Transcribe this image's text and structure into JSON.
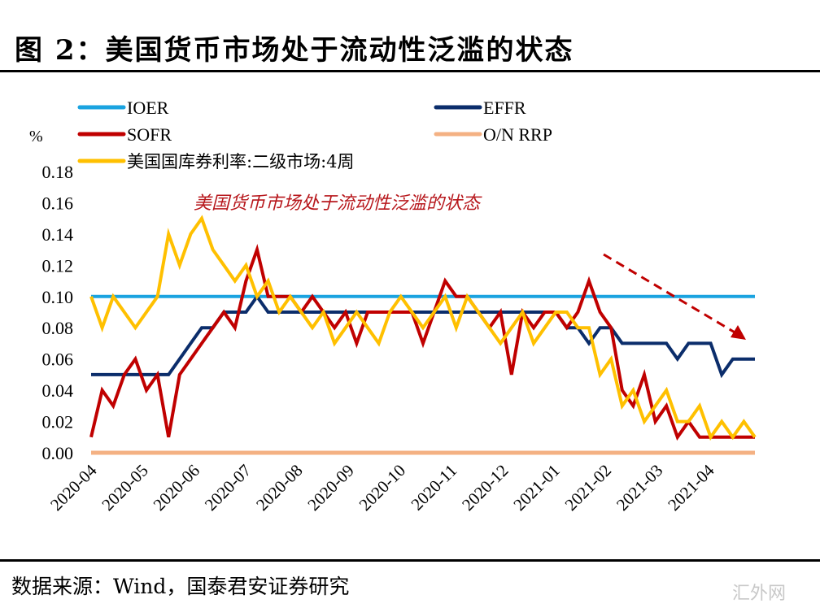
{
  "title": "图 2：美国货币市场处于流动性泛滥的状态",
  "source": "数据来源：Wind，国泰君安证券研究",
  "watermark": "汇外网",
  "chart_data": {
    "type": "line",
    "title": "图 2：美国货币市场处于流动性泛滥的状态",
    "annotation": "美国货币市场处于流动性泛滥的状态",
    "annotation_arrow": "downward-trend",
    "ylabel": "%",
    "xlabel": "",
    "ylim": [
      0.0,
      0.18
    ],
    "yticks": [
      "0.00",
      "0.02",
      "0.04",
      "0.06",
      "0.08",
      "0.10",
      "0.12",
      "0.14",
      "0.16",
      "0.18"
    ],
    "xticks": [
      "2020-04",
      "2020-05",
      "2020-06",
      "2020-07",
      "2020-08",
      "2020-09",
      "2020-10",
      "2020-11",
      "2020-12",
      "2021-01",
      "2021-02",
      "2021-03",
      "2021-04"
    ],
    "x_range": [
      "2020-04-01",
      "2021-04-30"
    ],
    "grid": false,
    "legend_position": "top",
    "series": [
      {
        "name": "IOER",
        "color": "#1aa3e0",
        "values": [
          0.1,
          0.1,
          0.1,
          0.1,
          0.1,
          0.1,
          0.1,
          0.1,
          0.1,
          0.1,
          0.1,
          0.1,
          0.1,
          0.1,
          0.1,
          0.1,
          0.1,
          0.1,
          0.1,
          0.1,
          0.1,
          0.1,
          0.1,
          0.1,
          0.1,
          0.1,
          0.1,
          0.1,
          0.1,
          0.1,
          0.1,
          0.1,
          0.1,
          0.1,
          0.1,
          0.1,
          0.1,
          0.1,
          0.1,
          0.1,
          0.1,
          0.1,
          0.1,
          0.1,
          0.1,
          0.1,
          0.1,
          0.1,
          0.1,
          0.1,
          0.1,
          0.1,
          0.1,
          0.1,
          0.1,
          0.1,
          0.1,
          0.1,
          0.1,
          0.1,
          0.1
        ]
      },
      {
        "name": "EFFR",
        "color": "#0b2d6b",
        "values": [
          0.05,
          0.05,
          0.05,
          0.05,
          0.05,
          0.05,
          0.05,
          0.05,
          0.06,
          0.07,
          0.08,
          0.08,
          0.09,
          0.09,
          0.09,
          0.1,
          0.09,
          0.09,
          0.09,
          0.09,
          0.09,
          0.09,
          0.09,
          0.09,
          0.09,
          0.09,
          0.09,
          0.09,
          0.09,
          0.09,
          0.09,
          0.09,
          0.09,
          0.09,
          0.09,
          0.09,
          0.09,
          0.09,
          0.09,
          0.09,
          0.09,
          0.09,
          0.09,
          0.08,
          0.08,
          0.07,
          0.08,
          0.08,
          0.07,
          0.07,
          0.07,
          0.07,
          0.07,
          0.06,
          0.07,
          0.07,
          0.07,
          0.05,
          0.06,
          0.06,
          0.06
        ]
      },
      {
        "name": "SOFR",
        "color": "#c00000",
        "values": [
          0.01,
          0.04,
          0.03,
          0.05,
          0.06,
          0.04,
          0.05,
          0.01,
          0.05,
          0.06,
          0.07,
          0.08,
          0.09,
          0.08,
          0.11,
          0.13,
          0.1,
          0.1,
          0.1,
          0.09,
          0.1,
          0.09,
          0.08,
          0.09,
          0.07,
          0.09,
          0.09,
          0.09,
          0.09,
          0.09,
          0.07,
          0.09,
          0.11,
          0.1,
          0.1,
          0.09,
          0.08,
          0.09,
          0.05,
          0.09,
          0.08,
          0.09,
          0.09,
          0.08,
          0.09,
          0.11,
          0.09,
          0.08,
          0.04,
          0.03,
          0.05,
          0.02,
          0.03,
          0.01,
          0.02,
          0.01,
          0.01,
          0.01,
          0.01,
          0.01,
          0.01
        ]
      },
      {
        "name": "O/N RRP",
        "color": "#f4b183",
        "values": [
          0.0,
          0.0,
          0.0,
          0.0,
          0.0,
          0.0,
          0.0,
          0.0,
          0.0,
          0.0,
          0.0,
          0.0,
          0.0,
          0.0,
          0.0,
          0.0,
          0.0,
          0.0,
          0.0,
          0.0,
          0.0,
          0.0,
          0.0,
          0.0,
          0.0,
          0.0,
          0.0,
          0.0,
          0.0,
          0.0,
          0.0,
          0.0,
          0.0,
          0.0,
          0.0,
          0.0,
          0.0,
          0.0,
          0.0,
          0.0,
          0.0,
          0.0,
          0.0,
          0.0,
          0.0,
          0.0,
          0.0,
          0.0,
          0.0,
          0.0,
          0.0,
          0.0,
          0.0,
          0.0,
          0.0,
          0.0,
          0.0,
          0.0,
          0.0,
          0.0,
          0.0
        ]
      },
      {
        "name": "美国国库券利率:二级市场:4周",
        "color": "#ffc000",
        "values": [
          0.1,
          0.08,
          0.1,
          0.09,
          0.08,
          0.09,
          0.1,
          0.14,
          0.12,
          0.14,
          0.15,
          0.13,
          0.12,
          0.11,
          0.12,
          0.1,
          0.11,
          0.09,
          0.1,
          0.09,
          0.08,
          0.09,
          0.07,
          0.08,
          0.09,
          0.08,
          0.07,
          0.09,
          0.1,
          0.09,
          0.08,
          0.09,
          0.1,
          0.08,
          0.1,
          0.09,
          0.08,
          0.07,
          0.08,
          0.09,
          0.07,
          0.08,
          0.09,
          0.09,
          0.08,
          0.08,
          0.05,
          0.06,
          0.03,
          0.04,
          0.02,
          0.03,
          0.04,
          0.02,
          0.02,
          0.03,
          0.01,
          0.02,
          0.01,
          0.02,
          0.01
        ]
      }
    ]
  }
}
